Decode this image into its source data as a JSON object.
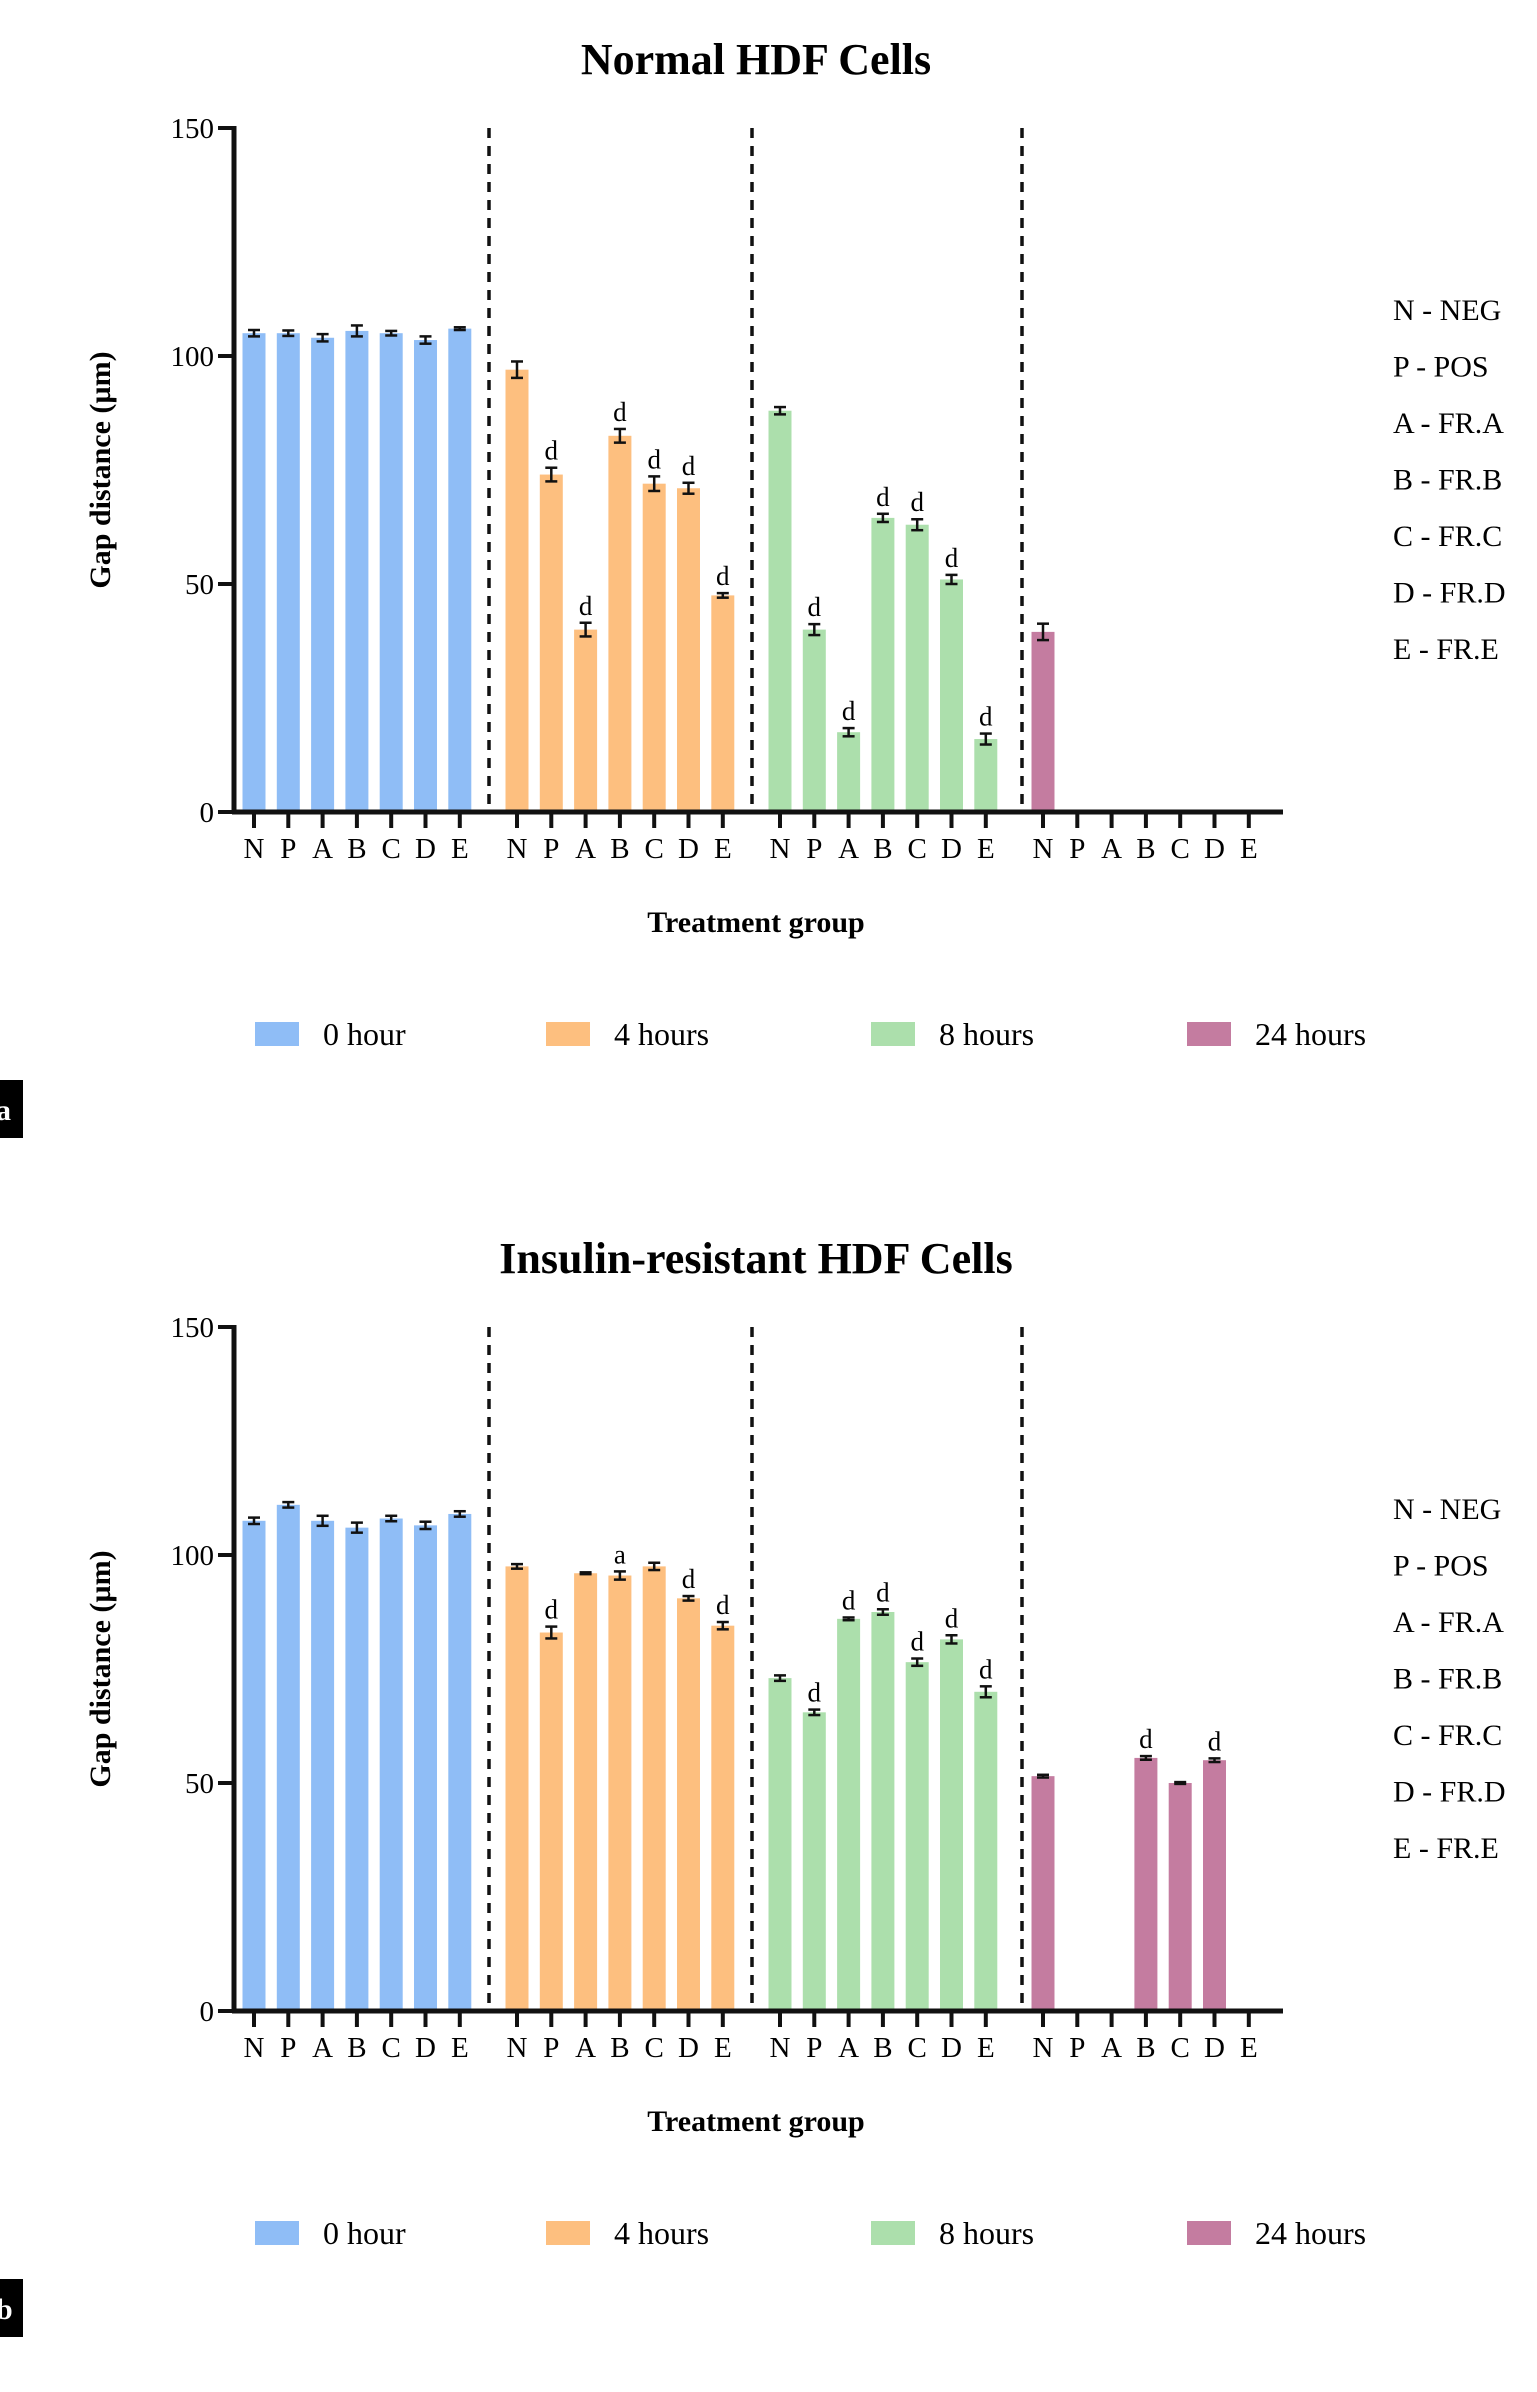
{
  "chart_data": [
    {
      "type": "bar",
      "panel_label": "a",
      "title": "Normal HDF Cells",
      "xlabel": "Treatment group",
      "ylabel": "Gap distance (µm)",
      "ylim": [
        0,
        150
      ],
      "yticks": [
        0,
        50,
        100,
        150
      ],
      "categories": [
        "N",
        "P",
        "A",
        "B",
        "C",
        "D",
        "E"
      ],
      "series": [
        {
          "name": "0 hour",
          "color": "#8fbdf6",
          "values": [
            105,
            105,
            104,
            105.5,
            105,
            103.5,
            106
          ],
          "errors": [
            0.7,
            0.6,
            0.8,
            1.2,
            0.5,
            0.8,
            0.3
          ],
          "annotations": [
            "",
            "",
            "",
            "",
            "",
            "",
            ""
          ]
        },
        {
          "name": "4 hours",
          "color": "#fdbf7f",
          "values": [
            97,
            74,
            40,
            82.5,
            72,
            71,
            47.5
          ],
          "errors": [
            1.8,
            1.5,
            1.5,
            1.5,
            1.6,
            1.2,
            0.5
          ],
          "annotations": [
            "",
            "d",
            "d",
            "d",
            "d",
            "d",
            "d"
          ]
        },
        {
          "name": "8 hours",
          "color": "#acdfac",
          "values": [
            88,
            40,
            17.5,
            64.5,
            63,
            51,
            16
          ],
          "errors": [
            0.8,
            1.2,
            0.9,
            0.9,
            1.2,
            1.0,
            1.2
          ],
          "annotations": [
            "",
            "d",
            "d",
            "d",
            "d",
            "d",
            "d"
          ]
        },
        {
          "name": "24 hours",
          "color": "#c47ca0",
          "values": [
            39.5,
            0,
            0,
            0,
            0,
            0,
            0
          ],
          "errors": [
            1.8,
            0,
            0,
            0,
            0,
            0,
            0
          ],
          "annotations": [
            "",
            "",
            "",
            "",
            "",
            "",
            ""
          ]
        }
      ],
      "key": [
        "N - NEG",
        "P - POS",
        "A - FR.A",
        "B - FR.B",
        "C - FR.C",
        "D - FR.D",
        "E - FR.E"
      ],
      "legend_position": "bottom"
    },
    {
      "type": "bar",
      "panel_label": "b",
      "title": "Insulin-resistant HDF Cells",
      "xlabel": "Treatment group",
      "ylabel": "Gap distance (µm)",
      "ylim": [
        0,
        150
      ],
      "yticks": [
        0,
        50,
        100,
        150
      ],
      "categories": [
        "N",
        "P",
        "A",
        "B",
        "C",
        "D",
        "E"
      ],
      "series": [
        {
          "name": "0 hour",
          "color": "#8fbdf6",
          "values": [
            107.5,
            111,
            107.5,
            106,
            108,
            106.5,
            109
          ],
          "errors": [
            0.7,
            0.6,
            1.1,
            1.1,
            0.6,
            0.8,
            0.6
          ],
          "annotations": [
            "",
            "",
            "",
            "",
            "",
            "",
            ""
          ]
        },
        {
          "name": "4 hours",
          "color": "#fdbf7f",
          "values": [
            97.5,
            83,
            96,
            95.5,
            97.5,
            90.5,
            84.5
          ],
          "errors": [
            0.5,
            1.3,
            0.2,
            0.9,
            0.8,
            0.5,
            0.8
          ],
          "annotations": [
            "",
            "d",
            "",
            "a",
            "",
            "d",
            "d"
          ]
        },
        {
          "name": "8 hours",
          "color": "#acdfac",
          "values": [
            73,
            65.5,
            86,
            87.5,
            76.5,
            81.5,
            70
          ],
          "errors": [
            0.6,
            0.6,
            0.3,
            0.6,
            0.8,
            0.9,
            1.2
          ],
          "annotations": [
            "",
            "d",
            "d",
            "d",
            "d",
            "d",
            "d"
          ]
        },
        {
          "name": "24 hours",
          "color": "#c47ca0",
          "values": [
            51.5,
            0,
            0,
            55.5,
            50,
            55,
            0
          ],
          "errors": [
            0.3,
            0,
            0,
            0.4,
            0.2,
            0.4,
            0
          ],
          "annotations": [
            "",
            "",
            "",
            "d",
            "",
            "d",
            ""
          ]
        }
      ],
      "key": [
        "N - NEG",
        "P - POS",
        "A - FR.A",
        "B - FR.B",
        "C - FR.C",
        "D - FR.D",
        "E - FR.E"
      ],
      "legend_position": "bottom"
    }
  ]
}
